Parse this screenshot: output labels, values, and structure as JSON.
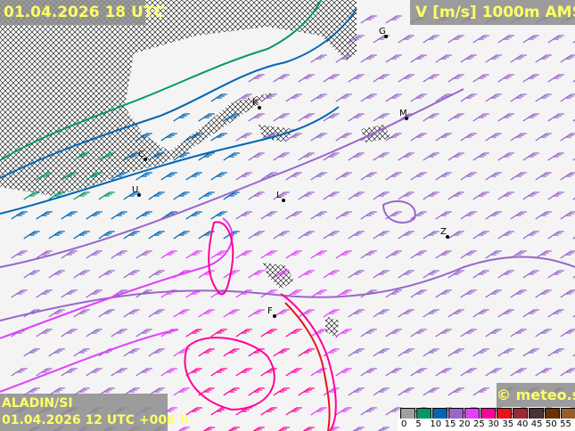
{
  "header": {
    "valid_time": "01.04.2026 18 UTC",
    "parameter": "V [m/s] 1000m AMSL"
  },
  "footer": {
    "model": "ALADIN/SI",
    "run": "01.04.2026 12 UTC +006 h",
    "copyright": "© meteo.si"
  },
  "legend": {
    "unit": "m/s",
    "ticks": [
      "0",
      "5",
      "10",
      "15",
      "20",
      "25",
      "30",
      "35",
      "40",
      "45",
      "50",
      "55"
    ],
    "colors": [
      "#a0a0a0",
      "#009966",
      "#0066b3",
      "#9966cc",
      "#e040fb",
      "#ff0099",
      "#e8141c",
      "#992933",
      "#4d3033",
      "#663300",
      "#995c2b",
      "#bf9e66"
    ]
  },
  "map_labels": [
    {
      "id": "g",
      "text": "G"
    },
    {
      "id": "m",
      "text": "M"
    },
    {
      "id": "k",
      "text": "K"
    },
    {
      "id": "c",
      "text": "C"
    },
    {
      "id": "l",
      "text": "L"
    },
    {
      "id": "z",
      "text": "Z"
    },
    {
      "id": "u",
      "text": "U"
    },
    {
      "id": "f",
      "text": "F"
    }
  ],
  "colors": {
    "land": "#f4f4f4",
    "terrain_mask": "hatched",
    "overlay_text": "#ffff66"
  }
}
